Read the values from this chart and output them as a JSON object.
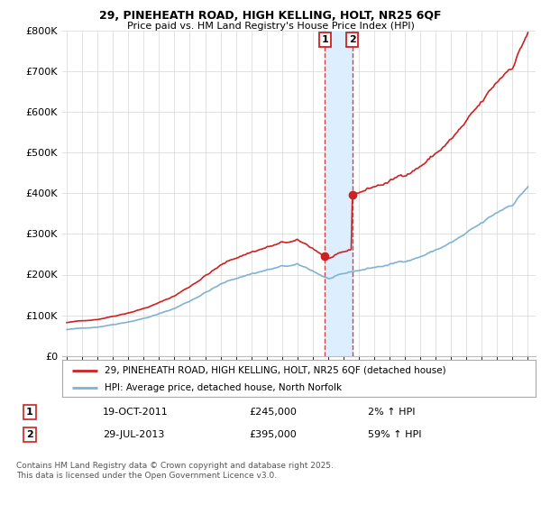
{
  "title1": "29, PINEHEATH ROAD, HIGH KELLING, HOLT, NR25 6QF",
  "title2": "Price paid vs. HM Land Registry's House Price Index (HPI)",
  "background_color": "#ffffff",
  "grid_color": "#dddddd",
  "hpi_color": "#7fb3d3",
  "price_color": "#cc2222",
  "vline_color": "#cc4444",
  "vfill_color": "#ddeeff",
  "ylim": [
    0,
    800000
  ],
  "yticks": [
    0,
    100000,
    200000,
    300000,
    400000,
    500000,
    600000,
    700000,
    800000
  ],
  "ytick_labels": [
    "£0",
    "£100K",
    "£200K",
    "£300K",
    "£400K",
    "£500K",
    "£600K",
    "£700K",
    "£800K"
  ],
  "legend_label1": "29, PINEHEATH ROAD, HIGH KELLING, HOLT, NR25 6QF (detached house)",
  "legend_label2": "HPI: Average price, detached house, North Norfolk",
  "annotation1_label": "1",
  "annotation1_date": "19-OCT-2011",
  "annotation1_price": "£245,000",
  "annotation1_hpi": "2% ↑ HPI",
  "annotation2_label": "2",
  "annotation2_date": "29-JUL-2013",
  "annotation2_price": "£395,000",
  "annotation2_hpi": "59% ↑ HPI",
  "footer": "Contains HM Land Registry data © Crown copyright and database right 2025.\nThis data is licensed under the Open Government Licence v3.0.",
  "sale1_x": 2011.79,
  "sale1_y": 245000,
  "sale2_x": 2013.58,
  "sale2_y": 395000,
  "xlim": [
    1994.7,
    2025.5
  ]
}
